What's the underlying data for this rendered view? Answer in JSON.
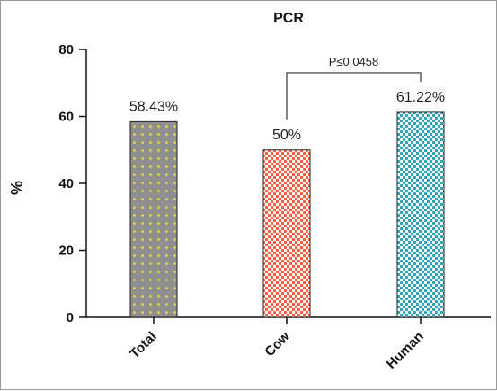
{
  "chart_data": {
    "type": "bar",
    "title": "PCR",
    "xlabel": "",
    "ylabel": "%",
    "ylim": [
      0,
      80
    ],
    "yticks": [
      "0",
      "20",
      "40",
      "60",
      "80"
    ],
    "categories": [
      "Total",
      "Cow",
      "Human"
    ],
    "values": [
      58.43,
      50,
      61.22
    ],
    "data_labels": [
      "58.43%",
      "50%",
      "61.22%"
    ],
    "bar_colors": [
      "#8f8f8f",
      "#f26a4f",
      "#39a9bf"
    ],
    "bar_patterns": [
      "yellow-dots",
      "red-checker",
      "teal-checker"
    ],
    "significance": {
      "between": [
        "Cow",
        "Human"
      ],
      "label": "P≤0.0458"
    },
    "grid": false,
    "legend": "none"
  }
}
